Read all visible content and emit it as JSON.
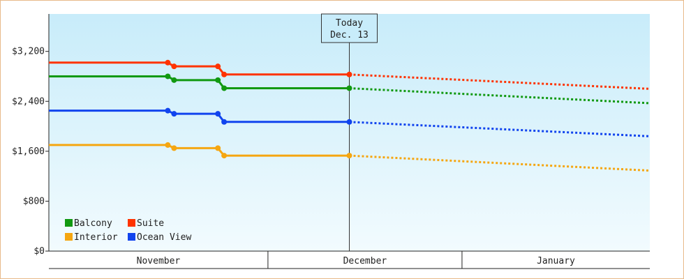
{
  "chart_data": {
    "type": "line",
    "title": "",
    "xlabel": "",
    "ylabel": "",
    "ylim": [
      0,
      3800
    ],
    "y_ticks": [
      {
        "value": 0,
        "label": "$0"
      },
      {
        "value": 800,
        "label": "$800"
      },
      {
        "value": 1600,
        "label": "$1,600"
      },
      {
        "value": 2400,
        "label": "$2,400"
      },
      {
        "value": 3200,
        "label": "$3,200"
      }
    ],
    "x_range": [
      "2023-10-26",
      "2024-01-30"
    ],
    "months": [
      {
        "label": "November",
        "start": "2023-10-26",
        "end": "2023-11-30"
      },
      {
        "label": "December",
        "start": "2023-11-30",
        "end": "2023-12-31"
      },
      {
        "label": "January",
        "start": "2023-12-31",
        "end": "2024-01-30"
      }
    ],
    "today": {
      "date": "2023-12-13",
      "label_line1": "Today",
      "label_line2": "Dec. 13"
    },
    "grid": false,
    "legend_placement": "bottom-left",
    "colors": {
      "background_top": "#c8ecfa",
      "background_bottom": "#f2fbfe",
      "frame": "#e8b98a"
    },
    "series": [
      {
        "name": "Suite",
        "color": "#ff3300",
        "history": [
          [
            "2023-10-26",
            3020
          ],
          [
            "2023-11-14",
            3020
          ],
          [
            "2023-11-15",
            2960
          ],
          [
            "2023-11-22",
            2960
          ],
          [
            "2023-11-23",
            2830
          ],
          [
            "2023-12-13",
            2830
          ]
        ],
        "forecast": [
          [
            "2023-12-13",
            2830
          ],
          [
            "2024-01-30",
            2600
          ]
        ]
      },
      {
        "name": "Balcony",
        "color": "#119911",
        "history": [
          [
            "2023-10-26",
            2800
          ],
          [
            "2023-11-14",
            2800
          ],
          [
            "2023-11-15",
            2740
          ],
          [
            "2023-11-22",
            2740
          ],
          [
            "2023-11-23",
            2610
          ],
          [
            "2023-12-13",
            2610
          ]
        ],
        "forecast": [
          [
            "2023-12-13",
            2610
          ],
          [
            "2024-01-30",
            2370
          ]
        ]
      },
      {
        "name": "Ocean View",
        "color": "#1144ee",
        "history": [
          [
            "2023-10-26",
            2250
          ],
          [
            "2023-11-14",
            2250
          ],
          [
            "2023-11-15",
            2200
          ],
          [
            "2023-11-22",
            2200
          ],
          [
            "2023-11-23",
            2070
          ],
          [
            "2023-12-13",
            2070
          ]
        ],
        "forecast": [
          [
            "2023-12-13",
            2070
          ],
          [
            "2024-01-30",
            1840
          ]
        ]
      },
      {
        "name": "Interior",
        "color": "#f5a611",
        "history": [
          [
            "2023-10-26",
            1700
          ],
          [
            "2023-11-14",
            1700
          ],
          [
            "2023-11-15",
            1650
          ],
          [
            "2023-11-22",
            1650
          ],
          [
            "2023-11-23",
            1530
          ],
          [
            "2023-12-13",
            1530
          ]
        ],
        "forecast": [
          [
            "2023-12-13",
            1530
          ],
          [
            "2024-01-30",
            1290
          ]
        ]
      }
    ],
    "legend": [
      "Balcony",
      "Suite",
      "Interior",
      "Ocean View"
    ]
  }
}
